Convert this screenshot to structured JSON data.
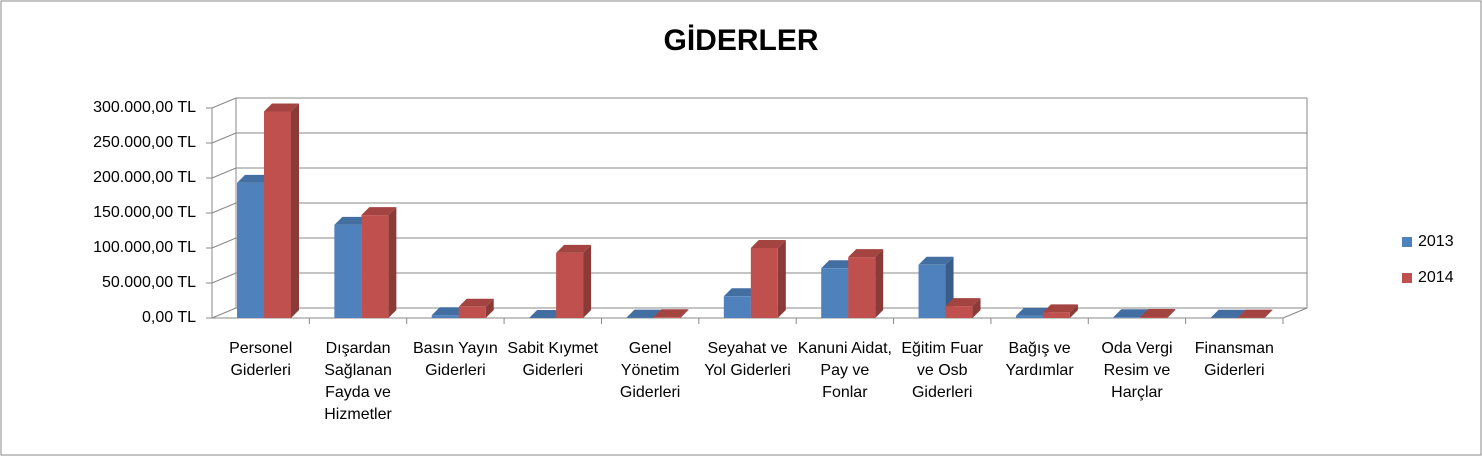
{
  "chart_data": {
    "type": "bar3d",
    "title": "GİDERLER",
    "categories": [
      "Personel Giderleri",
      "Dışardan Sağlanan Fayda ve Hizmetler",
      "Basın Yayın Giderleri",
      "Sabit Kıymet Giderleri",
      "Genel Yönetim Giderleri",
      "Seyahat ve Yol Giderleri",
      "Kanuni Aidat, Pay ve Fonlar",
      "Eğitim Fuar ve Osb Giderleri",
      "Bağış ve Yardımlar",
      "Oda Vergi Resim ve Harçlar",
      "Finansman Giderleri"
    ],
    "series": [
      {
        "name": "2013",
        "color": "#4f81bd",
        "values": [
          193000,
          133000,
          4000,
          0,
          500,
          31000,
          71000,
          76000,
          3000,
          1000,
          300
        ]
      },
      {
        "name": "2014",
        "color": "#c0504d",
        "values": [
          295000,
          147000,
          16000,
          93000,
          1000,
          100000,
          87000,
          17000,
          8000,
          1500,
          500
        ]
      }
    ],
    "ylim": [
      0,
      300000
    ],
    "yticks": [
      {
        "value": 0,
        "label": "0,00 TL"
      },
      {
        "value": 50000,
        "label": "50.000,00 TL"
      },
      {
        "value": 100000,
        "label": "100.000,00 TL"
      },
      {
        "value": 150000,
        "label": "150.000,00 TL"
      },
      {
        "value": 200000,
        "label": "200.000,00 TL"
      },
      {
        "value": 250000,
        "label": "250.000,00 TL"
      },
      {
        "value": 300000,
        "label": "300.000,00 TL"
      }
    ],
    "grid": true,
    "legend": "right"
  }
}
